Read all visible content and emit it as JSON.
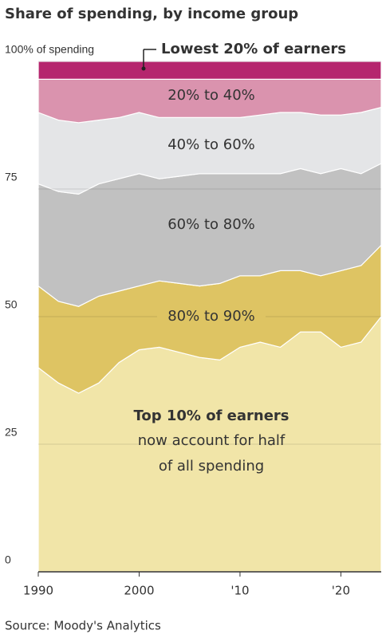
{
  "chart_data": {
    "type": "stacked-area",
    "title": "Share of spending, by income group",
    "source": "Source: Moody's Analytics",
    "x": [
      1990,
      1992,
      1994,
      1996,
      1998,
      2000,
      2002,
      2004,
      2006,
      2008,
      2010,
      2012,
      2014,
      2016,
      2018,
      2020,
      2022,
      2024
    ],
    "series": [
      {
        "name": "Top 10% of earners",
        "color": "#f1e5a8",
        "values": [
          40,
          37,
          35,
          37,
          41,
          43.5,
          44,
          43,
          42,
          41.5,
          44,
          45,
          44,
          47,
          47,
          44,
          45,
          50
        ]
      },
      {
        "name": "80% to 90%",
        "color": "#dec463",
        "values": [
          16,
          16,
          17,
          17,
          14,
          12.5,
          13,
          13.5,
          14,
          15,
          14,
          13,
          15,
          12,
          11,
          15,
          15,
          14
        ]
      },
      {
        "name": "60% to 80%",
        "color": "#c1c1c1",
        "values": [
          20,
          21.5,
          22,
          22,
          22,
          22,
          20,
          21,
          22,
          21.5,
          20,
          20,
          19,
          20,
          20,
          20,
          18,
          16
        ]
      },
      {
        "name": "40% to 60%",
        "color": "#e4e5e7",
        "values": [
          14,
          14,
          14,
          12.5,
          12,
          12,
          12,
          11.5,
          11,
          11,
          11,
          11.5,
          12,
          11,
          11.5,
          10.5,
          12,
          11
        ]
      },
      {
        "name": "20% to 40%",
        "color": "#da93ae",
        "values": [
          6.5,
          8,
          8.5,
          8,
          7.5,
          6.5,
          7.5,
          7.5,
          7.5,
          7.5,
          7.5,
          7,
          6.5,
          6.5,
          7,
          7,
          6.5,
          5.5
        ]
      },
      {
        "name": "Lowest 20% of earners",
        "color": "#b5266e",
        "values": [
          3.5,
          3.5,
          3.5,
          3.5,
          3.5,
          3.5,
          3.5,
          3.5,
          3.5,
          3.5,
          3.5,
          3.5,
          3.5,
          3.5,
          3.5,
          3.5,
          3.5,
          3.5
        ]
      }
    ],
    "annotation": [
      "now account for half",
      "of all spending"
    ],
    "xlim": [
      1990,
      2024
    ],
    "xticks": [
      1990,
      2000,
      {
        "value": 2010,
        "label": "'10"
      },
      {
        "value": 2020,
        "label": "'20"
      }
    ],
    "ylim": [
      0,
      100
    ],
    "yticks": [
      0,
      25,
      50,
      75,
      {
        "value": 100,
        "label": "100% of spending"
      }
    ],
    "grid": true
  }
}
